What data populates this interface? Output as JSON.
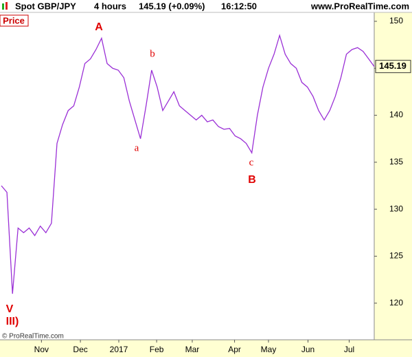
{
  "header": {
    "instrument": "Spot GBP/JPY",
    "interval": "4 hours",
    "quote": "145.19 (+0.09%)",
    "time": "16:12:50",
    "site": "www.ProRealTime.com"
  },
  "chart_data": {
    "type": "line",
    "panel_label": "Price",
    "copyright": "© ProRealTime.com",
    "xlim": [
      0,
      67
    ],
    "xticks": [
      {
        "value": 7.2,
        "label": "Nov"
      },
      {
        "value": 14.2,
        "label": "Dec"
      },
      {
        "value": 21.1,
        "label": "2017"
      },
      {
        "value": 27.9,
        "label": "Feb"
      },
      {
        "value": 34.3,
        "label": "Mar"
      },
      {
        "value": 41.9,
        "label": "Apr"
      },
      {
        "value": 48,
        "label": "May"
      },
      {
        "value": 55.1,
        "label": "Jun"
      },
      {
        "value": 62.5,
        "label": "Jul"
      }
    ],
    "ylim": [
      116.1,
      150.95
    ],
    "yticks": [
      120,
      125,
      130,
      135,
      140,
      145,
      150
    ],
    "series": [
      {
        "name": "GBP/JPY",
        "color": "#9a2fd6",
        "values": [
          132.5,
          131.8,
          121,
          128,
          127.5,
          128,
          127.2,
          128.2,
          127.5,
          128.5,
          137,
          139,
          140.5,
          141,
          143,
          145.5,
          146,
          147,
          148.2,
          145.5,
          145,
          144.8,
          144,
          141.5,
          139.5,
          137.5,
          141,
          144.8,
          143,
          140.5,
          141.5,
          142.5,
          141,
          140.5,
          140,
          139.5,
          140,
          139.3,
          139.5,
          138.8,
          138.5,
          138.6,
          137.8,
          137.5,
          137,
          136,
          140,
          143,
          145,
          146.5,
          148.5,
          146.5,
          145.5,
          145,
          143.5,
          143,
          142,
          140.5,
          139.5,
          140.5,
          142,
          144,
          146.5,
          147,
          147.2,
          146.8,
          146,
          145.19
        ]
      }
    ],
    "annotations": [
      "A",
      "b",
      "a",
      "c",
      "B",
      "V",
      "III)"
    ]
  }
}
